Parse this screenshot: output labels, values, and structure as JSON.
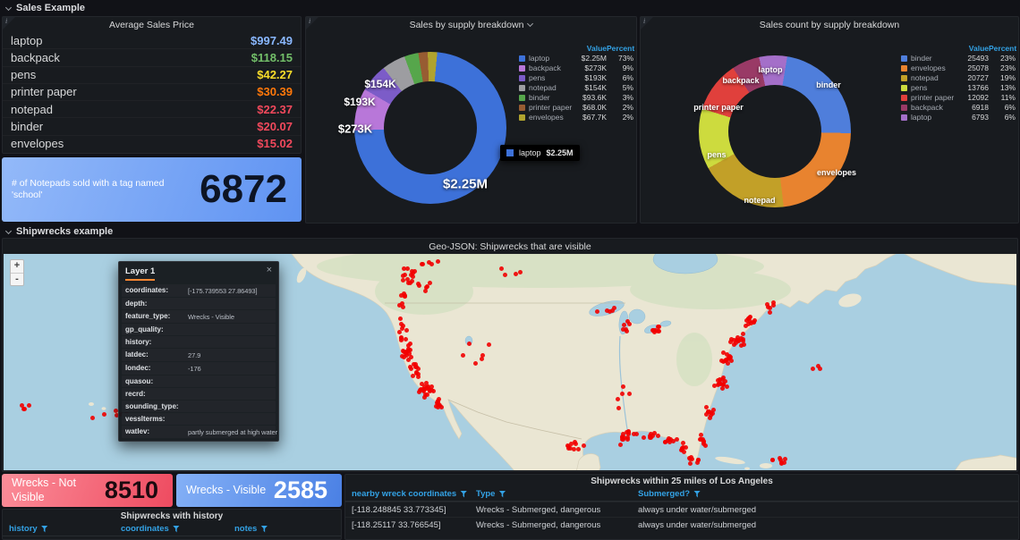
{
  "icons": {
    "info": "i",
    "close": "×",
    "zoom_in": "+",
    "zoom_out": "-"
  },
  "colors": {
    "header_blue": "#33A2E5",
    "marker_red": "#F20000",
    "panel_bg": "#181b1f",
    "page_bg": "#111217"
  },
  "sections": {
    "sales": "Sales Example",
    "shipwrecks": "Shipwrecks example"
  },
  "avg_price": {
    "title": "Average Sales Price",
    "rows": [
      {
        "name": "laptop",
        "value": "$997.49",
        "color": "#8AB8FF"
      },
      {
        "name": "backpack",
        "value": "$118.15",
        "color": "#73BF69"
      },
      {
        "name": "pens",
        "value": "$42.27",
        "color": "#FADE2A"
      },
      {
        "name": "printer paper",
        "value": "$30.39",
        "color": "#FF780A"
      },
      {
        "name": "notepad",
        "value": "$22.37",
        "color": "#F2495C"
      },
      {
        "name": "binder",
        "value": "$20.07",
        "color": "#F2495C"
      },
      {
        "name": "envelopes",
        "value": "$15.02",
        "color": "#F2495C"
      }
    ]
  },
  "notepad_stat": {
    "label": "# of Notepads sold with a tag named 'school'",
    "value": "6872",
    "bg_from": "#93b9f9",
    "bg_to": "#5f93f2"
  },
  "chart_data": [
    {
      "type": "donut",
      "title": "Sales by supply breakdown",
      "rotate": -20,
      "legend_position": "right",
      "legend_headers": [
        "Value",
        "Percent"
      ],
      "legend": [
        {
          "name": "laptop",
          "value": "$2.25M",
          "percent": "73%",
          "color": "#3D71D9"
        },
        {
          "name": "backpack",
          "value": "$273K",
          "percent": "9%",
          "color": "#B877D9"
        },
        {
          "name": "pens",
          "value": "$193K",
          "percent": "6%",
          "color": "#7C5CC8"
        },
        {
          "name": "notepad",
          "value": "$154K",
          "percent": "5%",
          "color": "#9D9DA1"
        },
        {
          "name": "binder",
          "value": "$93.6K",
          "percent": "3%",
          "color": "#56A64B"
        },
        {
          "name": "printer paper",
          "value": "$68.0K",
          "percent": "2%",
          "color": "#975C32"
        },
        {
          "name": "envelopes",
          "value": "$67.7K",
          "percent": "2%",
          "color": "#B0A32E"
        }
      ],
      "slices": [
        {
          "name": "binder",
          "pct": 3
        },
        {
          "name": "printer paper",
          "pct": 2
        },
        {
          "name": "envelopes",
          "pct": 2
        },
        {
          "name": "laptop",
          "pct": 73
        },
        {
          "name": "backpack",
          "pct": 9
        },
        {
          "name": "pens",
          "pct": 6
        },
        {
          "name": "notepad",
          "pct": 5
        }
      ],
      "labels_on_chart": [
        "$2.25M",
        "$273K",
        "$193K",
        "$154K"
      ],
      "tooltip": {
        "name": "laptop",
        "value": "$2.25M"
      }
    },
    {
      "type": "donut",
      "title": "Sales count by supply breakdown",
      "rotate": -12,
      "legend_position": "right",
      "legend_headers": [
        "Value",
        "Percent"
      ],
      "legend": [
        {
          "name": "binder",
          "value": "25493",
          "percent": "23%",
          "color": "#4F7EDB"
        },
        {
          "name": "envelopes",
          "value": "25078",
          "percent": "23%",
          "color": "#E8832F"
        },
        {
          "name": "notepad",
          "value": "20727",
          "percent": "19%",
          "color": "#C2A028"
        },
        {
          "name": "pens",
          "value": "13766",
          "percent": "13%",
          "color": "#CDDB3E"
        },
        {
          "name": "printer paper",
          "value": "12092",
          "percent": "11%",
          "color": "#E0403C"
        },
        {
          "name": "backpack",
          "value": "6918",
          "percent": "6%",
          "color": "#993A66"
        },
        {
          "name": "laptop",
          "value": "6793",
          "percent": "6%",
          "color": "#A46FC9"
        }
      ],
      "slices": [
        {
          "name": "laptop",
          "pct": 6
        },
        {
          "name": "binder",
          "pct": 23
        },
        {
          "name": "envelopes",
          "pct": 23
        },
        {
          "name": "notepad",
          "pct": 19
        },
        {
          "name": "pens",
          "pct": 13
        },
        {
          "name": "printer paper",
          "pct": 11
        },
        {
          "name": "backpack",
          "pct": 6
        }
      ],
      "labels_on_chart": [
        "laptop",
        "backpack",
        "binder",
        "printer paper",
        "pens",
        "notepad",
        "envelopes"
      ]
    }
  ],
  "map_panel": {
    "title": "Geo-JSON: Shipwrecks that are visible",
    "tooltip": {
      "title": "Layer 1",
      "fields": [
        {
          "label": "coordinates:",
          "value": "[-175.739553 27.86493]"
        },
        {
          "label": "depth:",
          "value": ""
        },
        {
          "label": "feature_type:",
          "value": "Wrecks - Visible"
        },
        {
          "label": "gp_quality:",
          "value": ""
        },
        {
          "label": "history:",
          "value": ""
        },
        {
          "label": "latdec:",
          "value": "27.9"
        },
        {
          "label": "londec:",
          "value": "-176"
        },
        {
          "label": "quasou:",
          "value": ""
        },
        {
          "label": "recrd:",
          "value": ""
        },
        {
          "label": "sounding_type:",
          "value": ""
        },
        {
          "label": "vesslterms:",
          "value": ""
        },
        {
          "label": "watlev:",
          "value": "partly submerged at high water"
        }
      ]
    }
  },
  "wrecks_stats": {
    "not_visible": {
      "label": "Wrecks - Not Visible",
      "value": "8510",
      "bg_from": "#fb8d99",
      "bg_to": "#ee4b60"
    },
    "visible": {
      "label": "Wrecks - Visible",
      "value": "2585",
      "bg_from": "#84b0f6",
      "bg_to": "#4a80e4"
    }
  },
  "history_table": {
    "title": "Shipwrecks with history",
    "headers": [
      "history",
      "coordinates",
      "notes"
    ]
  },
  "la_table": {
    "title": "Shipwrecks within 25 miles of Los Angeles",
    "headers": [
      "nearby wreck coordinates",
      "Type",
      "Submerged?"
    ],
    "rows": [
      [
        "[-118.248845 33.773345]",
        "Wrecks - Submerged, dangerous",
        "always under water/submerged"
      ],
      [
        "[-118.25117 33.766545]",
        "Wrecks - Submerged, dangerous",
        "always under water/submerged"
      ]
    ]
  }
}
